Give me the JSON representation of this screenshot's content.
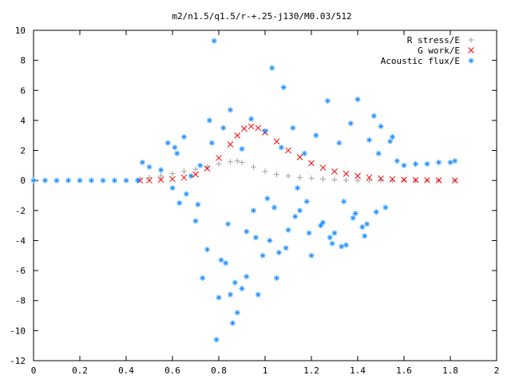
{
  "chart_data": {
    "type": "scatter",
    "title": "m2/n1.5/q1.5/r-+.25-j130/M0.03/512",
    "xlabel": "",
    "ylabel": "",
    "xlim": [
      0,
      2
    ],
    "ylim": [
      -12,
      10
    ],
    "xticks": [
      "0",
      "0.2",
      "0.4",
      "0.6",
      "0.8",
      "1",
      "1.2",
      "1.4",
      "1.6",
      "1.8",
      "2"
    ],
    "yticks": [
      "10",
      "8",
      "6",
      "4",
      "2",
      "0",
      "-2",
      "-4",
      "-6",
      "-8",
      "-10",
      "-12"
    ],
    "grid": false,
    "legend_position": "top-right",
    "series": [
      {
        "name": "R stress/E",
        "marker": "+",
        "color": "#a0a0a0",
        "x": [
          0.46,
          0.5,
          0.55,
          0.6,
          0.65,
          0.7,
          0.75,
          0.8,
          0.85,
          0.88,
          0.9,
          0.95,
          1.0,
          1.05,
          1.1,
          1.15,
          1.2,
          1.25,
          1.3,
          1.35,
          1.4,
          1.45,
          1.5,
          1.55,
          1.6,
          1.65,
          1.7,
          1.75,
          1.82
        ],
        "y": [
          0.1,
          0.2,
          0.3,
          0.45,
          0.6,
          0.75,
          0.9,
          1.1,
          1.25,
          1.3,
          1.2,
          0.9,
          0.6,
          0.4,
          0.3,
          0.2,
          0.15,
          0.1,
          0.05,
          0.02,
          0.0,
          0.0,
          0.0,
          0.0,
          0.0,
          0.0,
          0.0,
          0.0,
          0.0
        ]
      },
      {
        "name": "G work/E",
        "marker": "x",
        "color": "#ff0000",
        "x": [
          0.46,
          0.5,
          0.55,
          0.6,
          0.65,
          0.7,
          0.75,
          0.8,
          0.85,
          0.88,
          0.91,
          0.94,
          0.97,
          1.0,
          1.05,
          1.1,
          1.15,
          1.2,
          1.25,
          1.3,
          1.35,
          1.4,
          1.45,
          1.5,
          1.55,
          1.6,
          1.65,
          1.7,
          1.75,
          1.82
        ],
        "y": [
          0.0,
          0.0,
          0.05,
          0.1,
          0.2,
          0.4,
          0.8,
          1.5,
          2.4,
          3.0,
          3.45,
          3.6,
          3.5,
          3.2,
          2.6,
          2.0,
          1.55,
          1.15,
          0.85,
          0.6,
          0.45,
          0.3,
          0.2,
          0.13,
          0.08,
          0.05,
          0.03,
          0.02,
          0.01,
          0.0
        ]
      },
      {
        "name": "Acoustic flux/E",
        "marker": "*",
        "color": "#1e90ff",
        "x": [
          0.0,
          0.05,
          0.1,
          0.15,
          0.2,
          0.25,
          0.3,
          0.35,
          0.4,
          0.45,
          0.47,
          0.5,
          0.55,
          0.58,
          0.6,
          0.62,
          0.63,
          0.65,
          0.68,
          0.7,
          0.72,
          0.75,
          0.77,
          0.78,
          0.8,
          0.82,
          0.83,
          0.85,
          0.86,
          0.88,
          0.9,
          0.92,
          0.94,
          0.95,
          0.97,
          1.0,
          1.02,
          1.03,
          1.05,
          1.07,
          1.08,
          1.1,
          1.12,
          1.15,
          1.17,
          1.2,
          1.22,
          1.25,
          1.27,
          1.3,
          1.32,
          1.35,
          1.37,
          1.4,
          1.42,
          1.45,
          1.47,
          1.5,
          1.52,
          1.55,
          1.57,
          1.6,
          1.65,
          1.7,
          1.75,
          1.8,
          1.82,
          0.79,
          0.73,
          0.85,
          0.9,
          0.96,
          1.01,
          1.06,
          1.13,
          1.18,
          1.28,
          1.33,
          1.38,
          1.43,
          1.48,
          0.61,
          0.66,
          0.71,
          0.76,
          0.81,
          0.84,
          0.87,
          0.92,
          0.99,
          1.04,
          1.09,
          1.14,
          1.19,
          1.24,
          1.29,
          1.34,
          1.39,
          1.44,
          1.49,
          1.54
        ],
        "y": [
          0.0,
          0.0,
          0.0,
          0.0,
          0.0,
          0.0,
          0.0,
          0.0,
          0.0,
          0.0,
          1.2,
          0.9,
          0.7,
          2.5,
          -0.5,
          1.8,
          -1.5,
          2.9,
          0.3,
          -2.7,
          1.0,
          -4.6,
          2.5,
          9.3,
          -7.8,
          3.5,
          -5.5,
          4.7,
          -9.5,
          -8.8,
          2.1,
          -6.4,
          4.1,
          -2.0,
          -7.6,
          3.3,
          -4.0,
          7.5,
          -6.5,
          2.2,
          6.2,
          -3.3,
          3.5,
          -2.0,
          1.8,
          -5.0,
          3.0,
          -2.8,
          5.3,
          -3.5,
          2.5,
          -4.3,
          3.8,
          5.4,
          -3.1,
          2.7,
          4.3,
          3.6,
          -1.8,
          2.9,
          1.3,
          1.0,
          1.1,
          1.1,
          1.2,
          1.2,
          1.3,
          -10.6,
          -6.5,
          -7.6,
          -7.2,
          -3.8,
          -1.2,
          -4.8,
          -2.4,
          -1.4,
          -3.8,
          -4.4,
          -2.5,
          -3.7,
          -2.1,
          2.2,
          -0.9,
          -1.6,
          4.0,
          -5.3,
          -2.9,
          -6.8,
          -3.4,
          -5.0,
          -1.8,
          -4.5,
          -0.5,
          -3.5,
          -3.0,
          -4.2,
          -1.4,
          -2.2,
          -2.9,
          1.8,
          2.6
        ]
      }
    ]
  }
}
